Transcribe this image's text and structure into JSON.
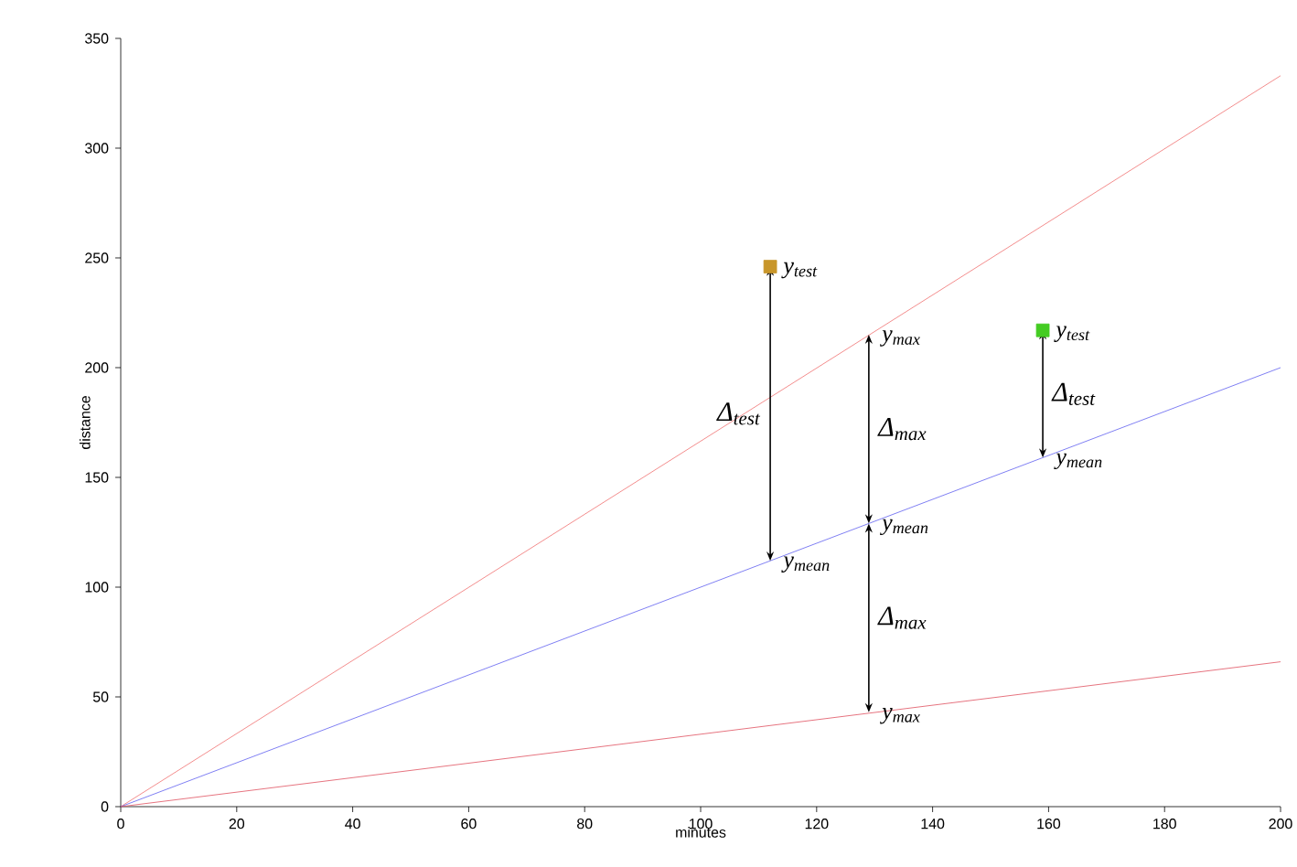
{
  "chart_data": {
    "type": "line",
    "xlabel": "minutes",
    "ylabel": "distance",
    "xlim": [
      0,
      200
    ],
    "ylim": [
      0,
      350
    ],
    "xticks": [
      0,
      20,
      40,
      60,
      80,
      100,
      120,
      140,
      160,
      180,
      200
    ],
    "yticks": [
      0,
      50,
      100,
      150,
      200,
      250,
      300,
      350
    ],
    "grid": false,
    "series": [
      {
        "color": "#f07070",
        "x": [
          0,
          200
        ],
        "values": [
          0,
          333
        ]
      },
      {
        "color": "#6060f0",
        "x": [
          0,
          200
        ],
        "values": [
          0,
          200
        ]
      },
      {
        "color": "#e05060",
        "x": [
          0,
          200
        ],
        "values": [
          0,
          66
        ]
      },
      {
        "type": "scatter",
        "marker": "square",
        "color": "#c8962a",
        "x": [
          112
        ],
        "values": [
          246
        ]
      },
      {
        "type": "scatter",
        "marker": "square",
        "color": "#44cc22",
        "x": [
          159
        ],
        "values": [
          217
        ]
      }
    ],
    "annotations": [
      {
        "text": "y$_{test}$",
        "x": 112,
        "y": 246
      },
      "Δ$_{test}$",
      {
        "text": "y$_{mean}$",
        "x": 112,
        "y": 112
      },
      {
        "text": "y$_{max}$",
        "x": 129,
        "y": 215
      },
      "Δ$_{max}$",
      {
        "text": "y$_{mean}$",
        "x": 129,
        "y": 129
      },
      "Δ$_{max}$",
      {
        "text": "y$_{max}$",
        "x": 129,
        "y": 43
      },
      {
        "text": "y$_{test}$",
        "x": 159,
        "y": 217
      },
      "Δ$_{test}$",
      {
        "text": "y$_{mean}$",
        "x": 159,
        "y": 159
      }
    ]
  }
}
